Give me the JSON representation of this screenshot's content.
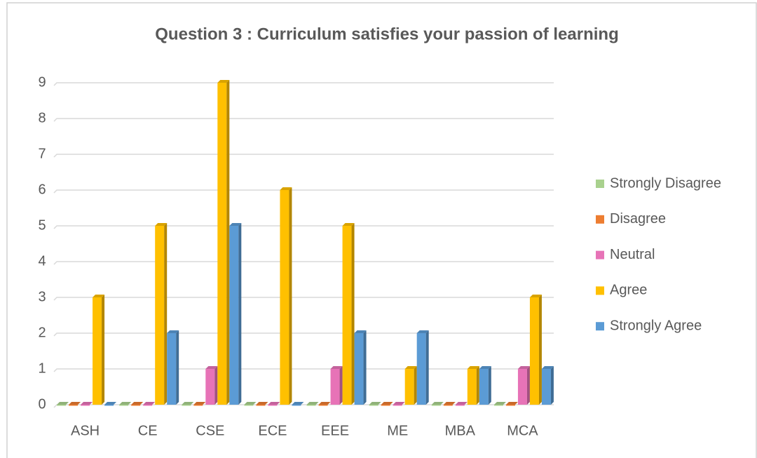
{
  "chart_data": {
    "type": "bar3d",
    "title": "Question 3 : Curriculum satisfies your passion of learning",
    "categories": [
      "ASH",
      "CE",
      "CSE",
      "ECE",
      "EEE",
      "ME",
      "MBA",
      "MCA"
    ],
    "series": [
      {
        "name": "Strongly Disagree",
        "color": "#a9d18e",
        "values": [
          0,
          0,
          0,
          0,
          0,
          0,
          0,
          0
        ]
      },
      {
        "name": "Disagree",
        "color": "#ed7d31",
        "values": [
          0,
          0,
          0,
          0,
          0,
          0,
          0,
          0
        ]
      },
      {
        "name": "Neutral",
        "color": "#e773b7",
        "values": [
          0,
          0,
          1,
          0,
          1,
          0,
          0,
          1
        ]
      },
      {
        "name": "Agree",
        "color": "#ffc000",
        "values": [
          3,
          5,
          9,
          6,
          5,
          1,
          1,
          3
        ]
      },
      {
        "name": "Strongly Agree",
        "color": "#5b9bd5",
        "values": [
          0,
          2,
          5,
          0,
          2,
          2,
          1,
          1
        ]
      }
    ],
    "ylim": [
      0,
      9
    ],
    "yticks": [
      0,
      1,
      2,
      3,
      4,
      5,
      6,
      7,
      8,
      9
    ],
    "grid": true,
    "legend": "right"
  }
}
